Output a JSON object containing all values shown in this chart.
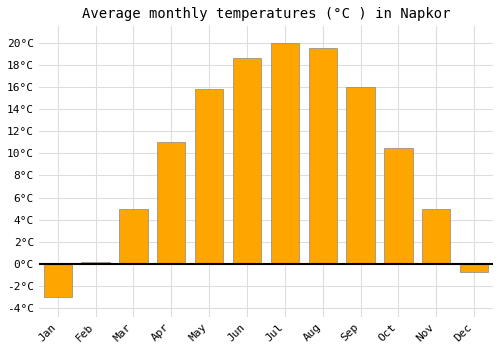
{
  "months": [
    "Jan",
    "Feb",
    "Mar",
    "Apr",
    "May",
    "Jun",
    "Jul",
    "Aug",
    "Sep",
    "Oct",
    "Nov",
    "Dec"
  ],
  "temperatures": [
    -3.0,
    0.2,
    5.0,
    11.0,
    15.8,
    18.6,
    20.0,
    19.5,
    16.0,
    10.5,
    5.0,
    -0.7
  ],
  "bar_color": "#FFA500",
  "bar_edge_color": "#888888",
  "title": "Average monthly temperatures (°C ) in Napkor",
  "ylabel_ticks": [
    -4,
    -2,
    0,
    2,
    4,
    6,
    8,
    10,
    12,
    14,
    16,
    18,
    20
  ],
  "ylim": [
    -4.8,
    21.5
  ],
  "background_color": "#ffffff",
  "plot_bg_color": "#ffffff",
  "grid_color": "#dddddd",
  "title_fontsize": 10,
  "tick_fontsize": 8,
  "font_family": "monospace",
  "bar_width": 0.75
}
